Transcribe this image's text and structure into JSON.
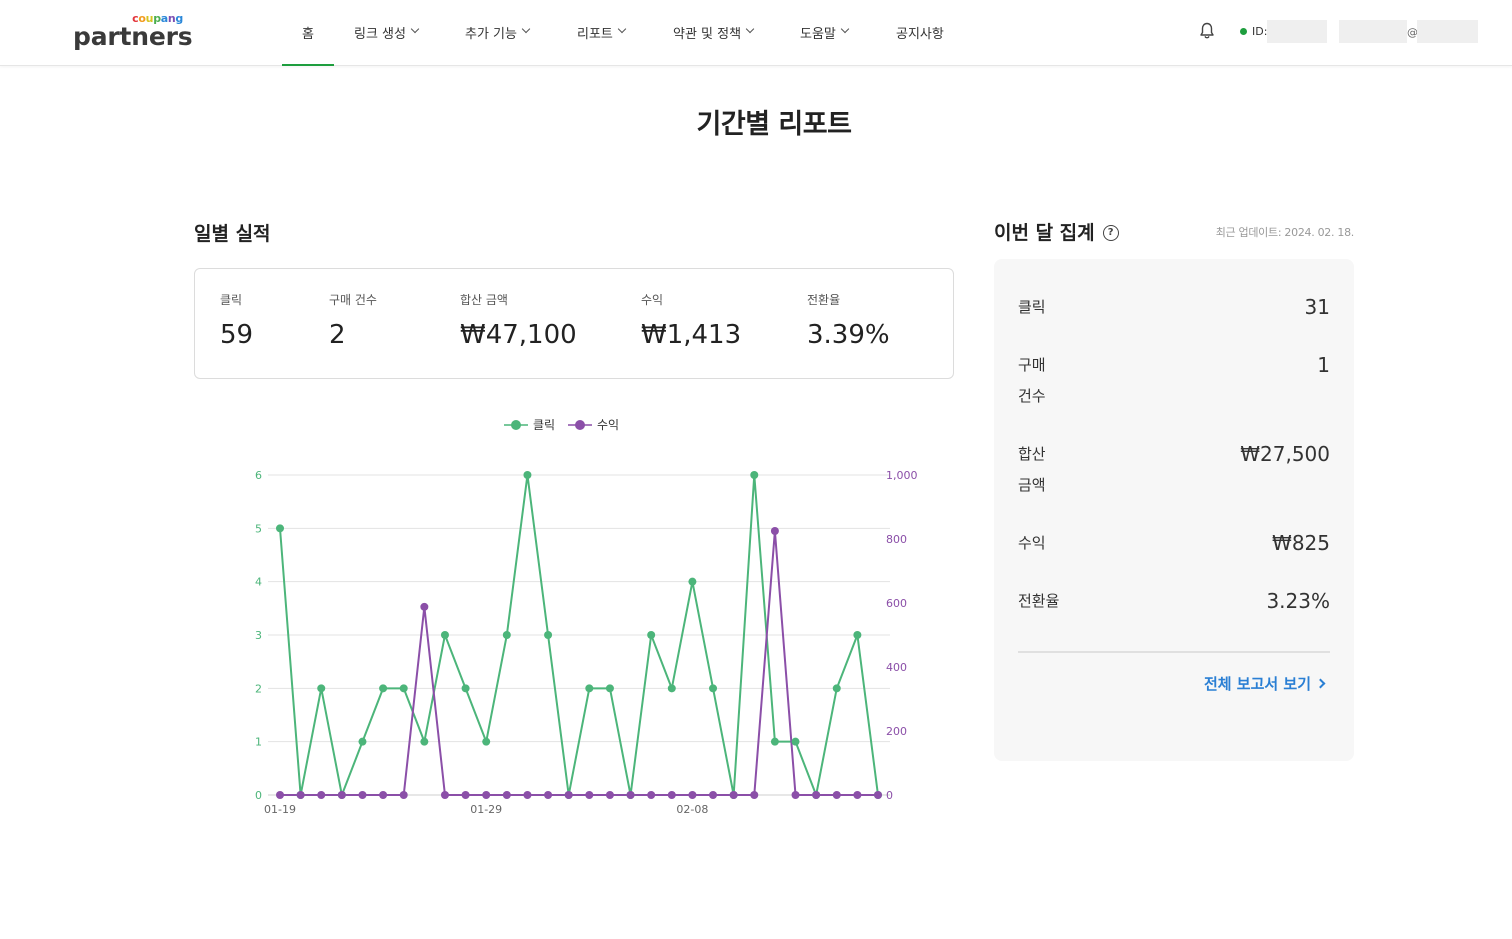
{
  "header": {
    "logo_small": "coupang",
    "logo_main": "partners",
    "nav": [
      {
        "label": "홈",
        "dropdown": false,
        "active": true
      },
      {
        "label": "링크 생성",
        "dropdown": true
      },
      {
        "label": "추가 기능",
        "dropdown": true
      },
      {
        "label": "리포트",
        "dropdown": true
      },
      {
        "label": "약관 및 정책",
        "dropdown": true
      },
      {
        "label": "도움말",
        "dropdown": true
      },
      {
        "label": "공지사항",
        "dropdown": false
      }
    ],
    "id_label": "ID:",
    "email_at": "@",
    "status_color": "#1e9e3e"
  },
  "page_title": "기간별 리포트",
  "daily": {
    "title": "일별 실적",
    "kpis": [
      {
        "label": "클릭",
        "value": "59"
      },
      {
        "label": "구매 건수",
        "value": "2"
      },
      {
        "label": "합산 금액",
        "value": "₩47,100"
      },
      {
        "label": "수익",
        "value": "₩1,413"
      },
      {
        "label": "전환율",
        "value": "3.39%"
      }
    ]
  },
  "chart_data": {
    "type": "line",
    "x": [
      "01-19",
      "01-20",
      "01-21",
      "01-22",
      "01-23",
      "01-24",
      "01-25",
      "01-26",
      "01-27",
      "01-28",
      "01-29",
      "01-30",
      "01-31",
      "02-01",
      "02-02",
      "02-03",
      "02-04",
      "02-05",
      "02-06",
      "02-07",
      "02-08",
      "02-09",
      "02-10",
      "02-11",
      "02-12",
      "02-13",
      "02-14",
      "02-15",
      "02-16",
      "02-17"
    ],
    "x_tick_labels": [
      "01-19",
      "01-29",
      "02-08"
    ],
    "series": [
      {
        "name": "클릭",
        "axis": "left",
        "color": "#4cb57a",
        "values": [
          5,
          0,
          2,
          0,
          1,
          2,
          2,
          1,
          3,
          2,
          1,
          3,
          6,
          3,
          0,
          2,
          2,
          0,
          3,
          2,
          4,
          2,
          0,
          6,
          1,
          1,
          0,
          2,
          3,
          0
        ]
      },
      {
        "name": "수익",
        "axis": "right",
        "color": "#8b4fa8",
        "values": [
          0,
          0,
          0,
          0,
          0,
          0,
          0,
          588,
          0,
          0,
          0,
          0,
          0,
          0,
          0,
          0,
          0,
          0,
          0,
          0,
          0,
          0,
          0,
          0,
          825,
          0,
          0,
          0,
          0,
          0
        ]
      }
    ],
    "y_left": {
      "range": [
        0,
        6
      ],
      "ticks": [
        "0",
        "1",
        "2",
        "3",
        "4",
        "5",
        "6"
      ]
    },
    "y_right": {
      "range": [
        0,
        1000
      ],
      "ticks": [
        "0",
        "200",
        "400",
        "600",
        "800",
        "1,000"
      ]
    },
    "legend_position": "top-center",
    "grid": true
  },
  "monthly": {
    "title": "이번 달 집계",
    "updated": "최근 업데이트: 2024. 02. 18.",
    "rows": [
      {
        "label": "클릭",
        "value": "31"
      },
      {
        "label": "구매 건수",
        "value": "1"
      },
      {
        "label": "합산 금액",
        "value": "₩27,500"
      },
      {
        "label": "수익",
        "value": "₩825"
      },
      {
        "label": "전환율",
        "value": "3.23%"
      }
    ],
    "link_label": "전체 보고서 보기"
  }
}
